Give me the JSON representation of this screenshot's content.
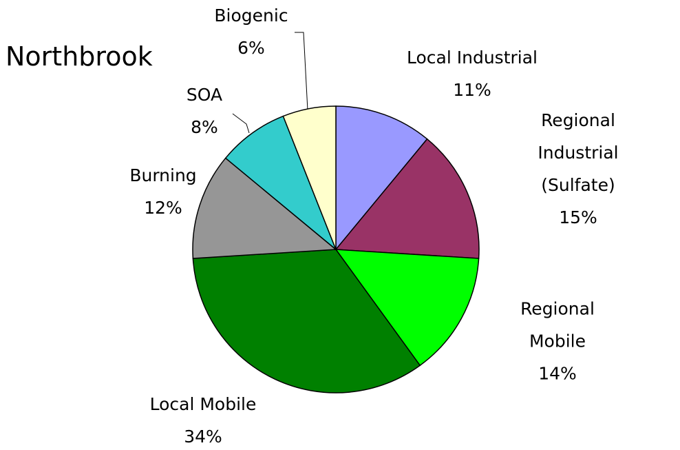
{
  "chart_data": {
    "type": "pie",
    "title": "Northbrook",
    "categories": [
      "Local Industrial",
      "Regional Industrial (Sulfate)",
      "Regional Mobile",
      "Local Mobile",
      "Burning",
      "SOA",
      "Biogenic"
    ],
    "values": [
      11,
      15,
      14,
      34,
      12,
      8,
      6
    ],
    "value_labels": [
      "11%",
      "15%",
      "14%",
      "34%",
      "12%",
      "8%",
      "6%"
    ],
    "colors": [
      "#9999ff",
      "#993366",
      "#00ff00",
      "#008000",
      "#969696",
      "#33cccc",
      "#ffffcc"
    ]
  }
}
